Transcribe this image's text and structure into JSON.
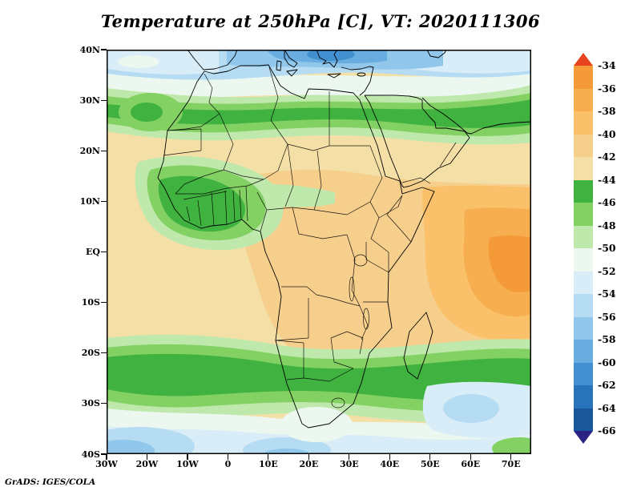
{
  "title": "Temperature at 250hPa [C], VT: 2020111306",
  "credit": "GrADS: IGES/COLA",
  "map": {
    "lat_ticks": [
      "40N",
      "30N",
      "20N",
      "10N",
      "EQ",
      "10S",
      "20S",
      "30S",
      "40S"
    ],
    "lon_ticks": [
      "30W",
      "20W",
      "10W",
      "0",
      "10E",
      "20E",
      "30E",
      "40E",
      "50E",
      "60E",
      "70E"
    ]
  },
  "colorbar": {
    "labels": [
      "-34",
      "-36",
      "-38",
      "-40",
      "-42",
      "-44",
      "-46",
      "-48",
      "-50",
      "-52",
      "-54",
      "-56",
      "-58",
      "-60",
      "-62",
      "-64",
      "-66"
    ],
    "top_color": "#e8431f",
    "bottom_color": "#2a2383",
    "band_colors": [
      "#f49a38",
      "#f7ae4e",
      "#fac16a",
      "#f7cf8c",
      "#f4e0a6",
      "#3fb23f",
      "#82d162",
      "#bfe8ac",
      "#ebf7ef",
      "#d9edf8",
      "#b5dcf2",
      "#90c7ea",
      "#68ace0",
      "#4290d0",
      "#2973bb",
      "#1b579b"
    ]
  },
  "palette": {
    "c34_36": "#f49a38",
    "c36_38": "#f7ae4e",
    "c38_40": "#fac16a",
    "c40_42": "#f7cf8c",
    "c42_44": "#f4e0a6",
    "c44_46": "#3fb23f",
    "c46_48": "#82d162",
    "c48_50": "#bfe8ac",
    "c50_52": "#ebf7ef",
    "c52_54": "#d9edf8",
    "c54_56": "#b5dcf2",
    "c56_58": "#90c7ea",
    "c58_60": "#68ace0",
    "c60_62": "#4290d0",
    "c62_64": "#2973bb",
    "c64_66": "#1b579b",
    "frame": "#000000"
  }
}
